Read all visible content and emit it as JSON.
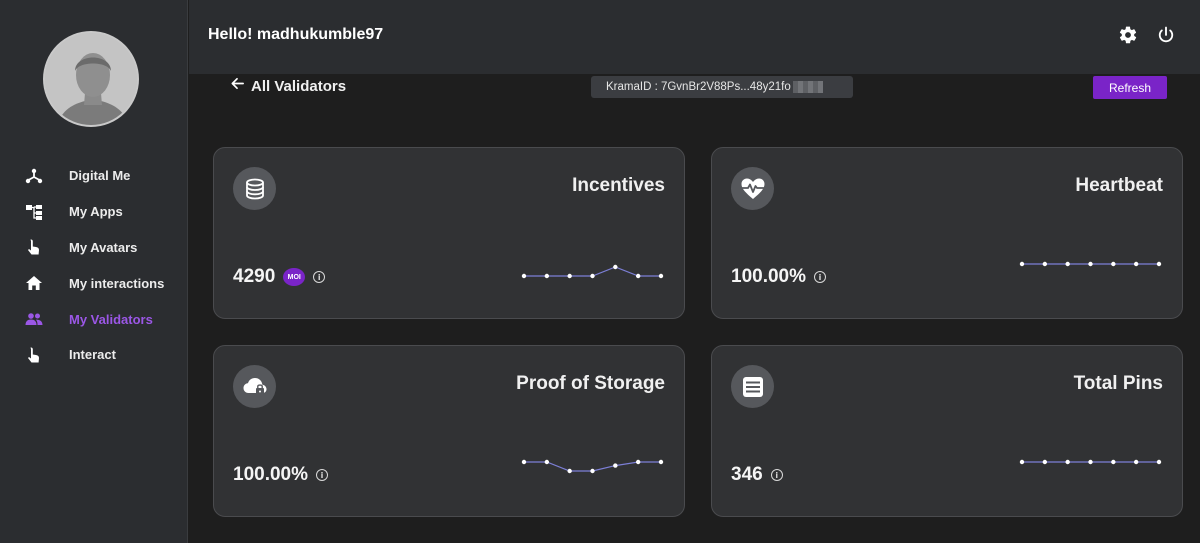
{
  "header": {
    "greeting": "Hello! madhukumble97",
    "settings_icon": "gear-icon",
    "power_icon": "power-icon"
  },
  "sidebar": {
    "avatar_icon": "user-avatar",
    "items": [
      {
        "label": "Digital Me",
        "icon": "network-icon",
        "active": false
      },
      {
        "label": "My Apps",
        "icon": "apps-tree-icon",
        "active": false
      },
      {
        "label": "My Avatars",
        "icon": "touch-icon",
        "active": false
      },
      {
        "label": "My interactions",
        "icon": "home-icon",
        "active": false
      },
      {
        "label": "My Validators",
        "icon": "people-icon",
        "active": true
      },
      {
        "label": "Interact",
        "icon": "touch-icon",
        "active": false
      }
    ],
    "active_color": "#9b57e6"
  },
  "toolbar": {
    "back_label": "All Validators",
    "krama_id": "KramaID : 7GvnBr2V88Ps...48y21fo",
    "refresh_label": "Refresh",
    "accent": "#7a24c8"
  },
  "cards": [
    {
      "title": "Incentives",
      "value": "4290",
      "token_badge": "MOI",
      "icon": "coins-icon",
      "trend": [
        0,
        0,
        0,
        0,
        1,
        0,
        0
      ]
    },
    {
      "title": "Heartbeat",
      "value": "100.00%",
      "icon": "heartbeat-icon",
      "trend": [
        0,
        0,
        0,
        0,
        0,
        0,
        0
      ]
    },
    {
      "title": "Proof of Storage",
      "value": "100.00%",
      "icon": "cloud-lock-icon",
      "trend": [
        0,
        0,
        -1,
        -1,
        -0.4,
        0,
        0
      ]
    },
    {
      "title": "Total Pins",
      "value": "346",
      "icon": "list-icon",
      "trend": [
        0,
        0,
        0,
        0,
        0,
        0,
        0
      ]
    }
  ]
}
